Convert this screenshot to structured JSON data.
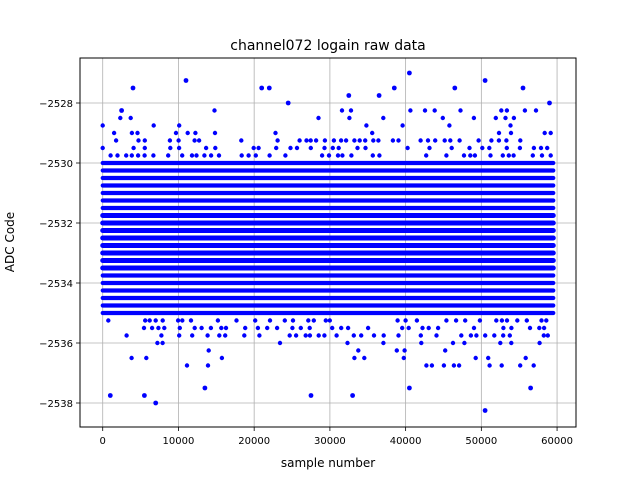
{
  "chart_data": {
    "type": "scatter",
    "title": "channel072 logain raw data",
    "xlabel": "sample number",
    "ylabel": "ADC Code",
    "xlim": [
      -3000,
      62500
    ],
    "ylim": [
      -2538.8,
      -2526.5
    ],
    "grid": true,
    "legend": "none",
    "marker_color": "#0000ff",
    "x_ticks": [
      0,
      10000,
      20000,
      30000,
      40000,
      50000,
      60000
    ],
    "x_tick_labels": [
      "0",
      "10000",
      "20000",
      "30000",
      "40000",
      "50000",
      "60000"
    ],
    "y_ticks": [
      -2538,
      -2536,
      -2534,
      -2532,
      -2530,
      -2528
    ],
    "y_tick_labels": [
      "−2538",
      "−2536",
      "−2534",
      "−2532",
      "−2530",
      "−2528"
    ],
    "x_range": [
      0,
      59500
    ],
    "code_step": 0.25,
    "dense_band": [
      -2533.5,
      -2531.75
    ],
    "main_band": [
      -2535.75,
      -2529.25
    ],
    "outliers": [
      {
        "x": 11000,
        "y": -2527.25
      },
      {
        "x": 40500,
        "y": -2527.0
      },
      {
        "x": 50500,
        "y": -2527.25
      },
      {
        "x": 4000,
        "y": -2527.5
      },
      {
        "x": 21000,
        "y": -2527.5
      },
      {
        "x": 22000,
        "y": -2527.5
      },
      {
        "x": 32500,
        "y": -2527.75
      },
      {
        "x": 36500,
        "y": -2527.75
      },
      {
        "x": 38500,
        "y": -2527.5
      },
      {
        "x": 46500,
        "y": -2527.5
      },
      {
        "x": 55500,
        "y": -2527.5
      },
      {
        "x": 59000,
        "y": -2528.0
      },
      {
        "x": 2500,
        "y": -2528.25
      },
      {
        "x": 24500,
        "y": -2528.0
      },
      {
        "x": 1000,
        "y": -2537.75
      },
      {
        "x": 7000,
        "y": -2538.0
      },
      {
        "x": 27500,
        "y": -2537.75
      },
      {
        "x": 33000,
        "y": -2537.75
      },
      {
        "x": 50500,
        "y": -2538.25
      },
      {
        "x": 5500,
        "y": -2537.75
      },
      {
        "x": 13500,
        "y": -2537.5
      },
      {
        "x": 40500,
        "y": -2537.5
      },
      {
        "x": 56500,
        "y": -2537.5
      }
    ]
  }
}
